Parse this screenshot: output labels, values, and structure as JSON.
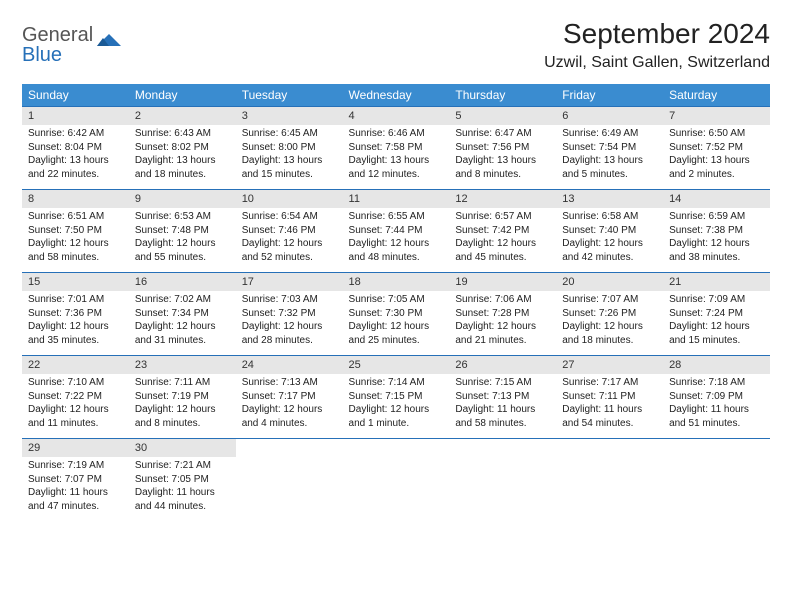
{
  "logo": {
    "general": "General",
    "blue": "Blue"
  },
  "title": "September 2024",
  "location": "Uzwil, Saint Gallen, Switzerland",
  "colors": {
    "header_bg": "#3a8cd0",
    "date_bg": "#e6e6e6",
    "border": "#2670b8",
    "logo_gray": "#555555",
    "logo_blue": "#2670b8"
  },
  "day_names": [
    "Sunday",
    "Monday",
    "Tuesday",
    "Wednesday",
    "Thursday",
    "Friday",
    "Saturday"
  ],
  "weeks": [
    [
      {
        "date": "1",
        "sunrise": "Sunrise: 6:42 AM",
        "sunset": "Sunset: 8:04 PM",
        "daylight": "Daylight: 13 hours and 22 minutes."
      },
      {
        "date": "2",
        "sunrise": "Sunrise: 6:43 AM",
        "sunset": "Sunset: 8:02 PM",
        "daylight": "Daylight: 13 hours and 18 minutes."
      },
      {
        "date": "3",
        "sunrise": "Sunrise: 6:45 AM",
        "sunset": "Sunset: 8:00 PM",
        "daylight": "Daylight: 13 hours and 15 minutes."
      },
      {
        "date": "4",
        "sunrise": "Sunrise: 6:46 AM",
        "sunset": "Sunset: 7:58 PM",
        "daylight": "Daylight: 13 hours and 12 minutes."
      },
      {
        "date": "5",
        "sunrise": "Sunrise: 6:47 AM",
        "sunset": "Sunset: 7:56 PM",
        "daylight": "Daylight: 13 hours and 8 minutes."
      },
      {
        "date": "6",
        "sunrise": "Sunrise: 6:49 AM",
        "sunset": "Sunset: 7:54 PM",
        "daylight": "Daylight: 13 hours and 5 minutes."
      },
      {
        "date": "7",
        "sunrise": "Sunrise: 6:50 AM",
        "sunset": "Sunset: 7:52 PM",
        "daylight": "Daylight: 13 hours and 2 minutes."
      }
    ],
    [
      {
        "date": "8",
        "sunrise": "Sunrise: 6:51 AM",
        "sunset": "Sunset: 7:50 PM",
        "daylight": "Daylight: 12 hours and 58 minutes."
      },
      {
        "date": "9",
        "sunrise": "Sunrise: 6:53 AM",
        "sunset": "Sunset: 7:48 PM",
        "daylight": "Daylight: 12 hours and 55 minutes."
      },
      {
        "date": "10",
        "sunrise": "Sunrise: 6:54 AM",
        "sunset": "Sunset: 7:46 PM",
        "daylight": "Daylight: 12 hours and 52 minutes."
      },
      {
        "date": "11",
        "sunrise": "Sunrise: 6:55 AM",
        "sunset": "Sunset: 7:44 PM",
        "daylight": "Daylight: 12 hours and 48 minutes."
      },
      {
        "date": "12",
        "sunrise": "Sunrise: 6:57 AM",
        "sunset": "Sunset: 7:42 PM",
        "daylight": "Daylight: 12 hours and 45 minutes."
      },
      {
        "date": "13",
        "sunrise": "Sunrise: 6:58 AM",
        "sunset": "Sunset: 7:40 PM",
        "daylight": "Daylight: 12 hours and 42 minutes."
      },
      {
        "date": "14",
        "sunrise": "Sunrise: 6:59 AM",
        "sunset": "Sunset: 7:38 PM",
        "daylight": "Daylight: 12 hours and 38 minutes."
      }
    ],
    [
      {
        "date": "15",
        "sunrise": "Sunrise: 7:01 AM",
        "sunset": "Sunset: 7:36 PM",
        "daylight": "Daylight: 12 hours and 35 minutes."
      },
      {
        "date": "16",
        "sunrise": "Sunrise: 7:02 AM",
        "sunset": "Sunset: 7:34 PM",
        "daylight": "Daylight: 12 hours and 31 minutes."
      },
      {
        "date": "17",
        "sunrise": "Sunrise: 7:03 AM",
        "sunset": "Sunset: 7:32 PM",
        "daylight": "Daylight: 12 hours and 28 minutes."
      },
      {
        "date": "18",
        "sunrise": "Sunrise: 7:05 AM",
        "sunset": "Sunset: 7:30 PM",
        "daylight": "Daylight: 12 hours and 25 minutes."
      },
      {
        "date": "19",
        "sunrise": "Sunrise: 7:06 AM",
        "sunset": "Sunset: 7:28 PM",
        "daylight": "Daylight: 12 hours and 21 minutes."
      },
      {
        "date": "20",
        "sunrise": "Sunrise: 7:07 AM",
        "sunset": "Sunset: 7:26 PM",
        "daylight": "Daylight: 12 hours and 18 minutes."
      },
      {
        "date": "21",
        "sunrise": "Sunrise: 7:09 AM",
        "sunset": "Sunset: 7:24 PM",
        "daylight": "Daylight: 12 hours and 15 minutes."
      }
    ],
    [
      {
        "date": "22",
        "sunrise": "Sunrise: 7:10 AM",
        "sunset": "Sunset: 7:22 PM",
        "daylight": "Daylight: 12 hours and 11 minutes."
      },
      {
        "date": "23",
        "sunrise": "Sunrise: 7:11 AM",
        "sunset": "Sunset: 7:19 PM",
        "daylight": "Daylight: 12 hours and 8 minutes."
      },
      {
        "date": "24",
        "sunrise": "Sunrise: 7:13 AM",
        "sunset": "Sunset: 7:17 PM",
        "daylight": "Daylight: 12 hours and 4 minutes."
      },
      {
        "date": "25",
        "sunrise": "Sunrise: 7:14 AM",
        "sunset": "Sunset: 7:15 PM",
        "daylight": "Daylight: 12 hours and 1 minute."
      },
      {
        "date": "26",
        "sunrise": "Sunrise: 7:15 AM",
        "sunset": "Sunset: 7:13 PM",
        "daylight": "Daylight: 11 hours and 58 minutes."
      },
      {
        "date": "27",
        "sunrise": "Sunrise: 7:17 AM",
        "sunset": "Sunset: 7:11 PM",
        "daylight": "Daylight: 11 hours and 54 minutes."
      },
      {
        "date": "28",
        "sunrise": "Sunrise: 7:18 AM",
        "sunset": "Sunset: 7:09 PM",
        "daylight": "Daylight: 11 hours and 51 minutes."
      }
    ],
    [
      {
        "date": "29",
        "sunrise": "Sunrise: 7:19 AM",
        "sunset": "Sunset: 7:07 PM",
        "daylight": "Daylight: 11 hours and 47 minutes."
      },
      {
        "date": "30",
        "sunrise": "Sunrise: 7:21 AM",
        "sunset": "Sunset: 7:05 PM",
        "daylight": "Daylight: 11 hours and 44 minutes."
      },
      null,
      null,
      null,
      null,
      null
    ]
  ]
}
